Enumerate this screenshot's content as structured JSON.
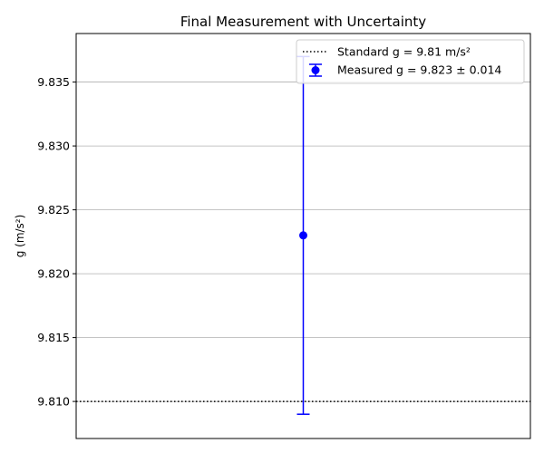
{
  "chart_data": {
    "type": "scatter",
    "title": "Final Measurement with Uncertainty",
    "xlabel": "",
    "ylabel": "g (m/s²)",
    "ylim": [
      9.8071,
      9.8388
    ],
    "yticks": [
      "9.810",
      "9.815",
      "9.820",
      "9.825",
      "9.830",
      "9.835"
    ],
    "ytick_values": [
      9.81,
      9.815,
      9.82,
      9.825,
      9.83,
      9.835
    ],
    "grid": "y-axis only",
    "legend_position": "top-right",
    "reference_line": {
      "label": "Standard g = 9.81 m/s²",
      "y": 9.81,
      "style": "dotted",
      "color": "#000000"
    },
    "series": [
      {
        "name": "Measured g = 9.823 ± 0.014",
        "color": "#0000ff",
        "points": [
          {
            "y": 9.823,
            "error": 0.014
          }
        ]
      }
    ]
  }
}
